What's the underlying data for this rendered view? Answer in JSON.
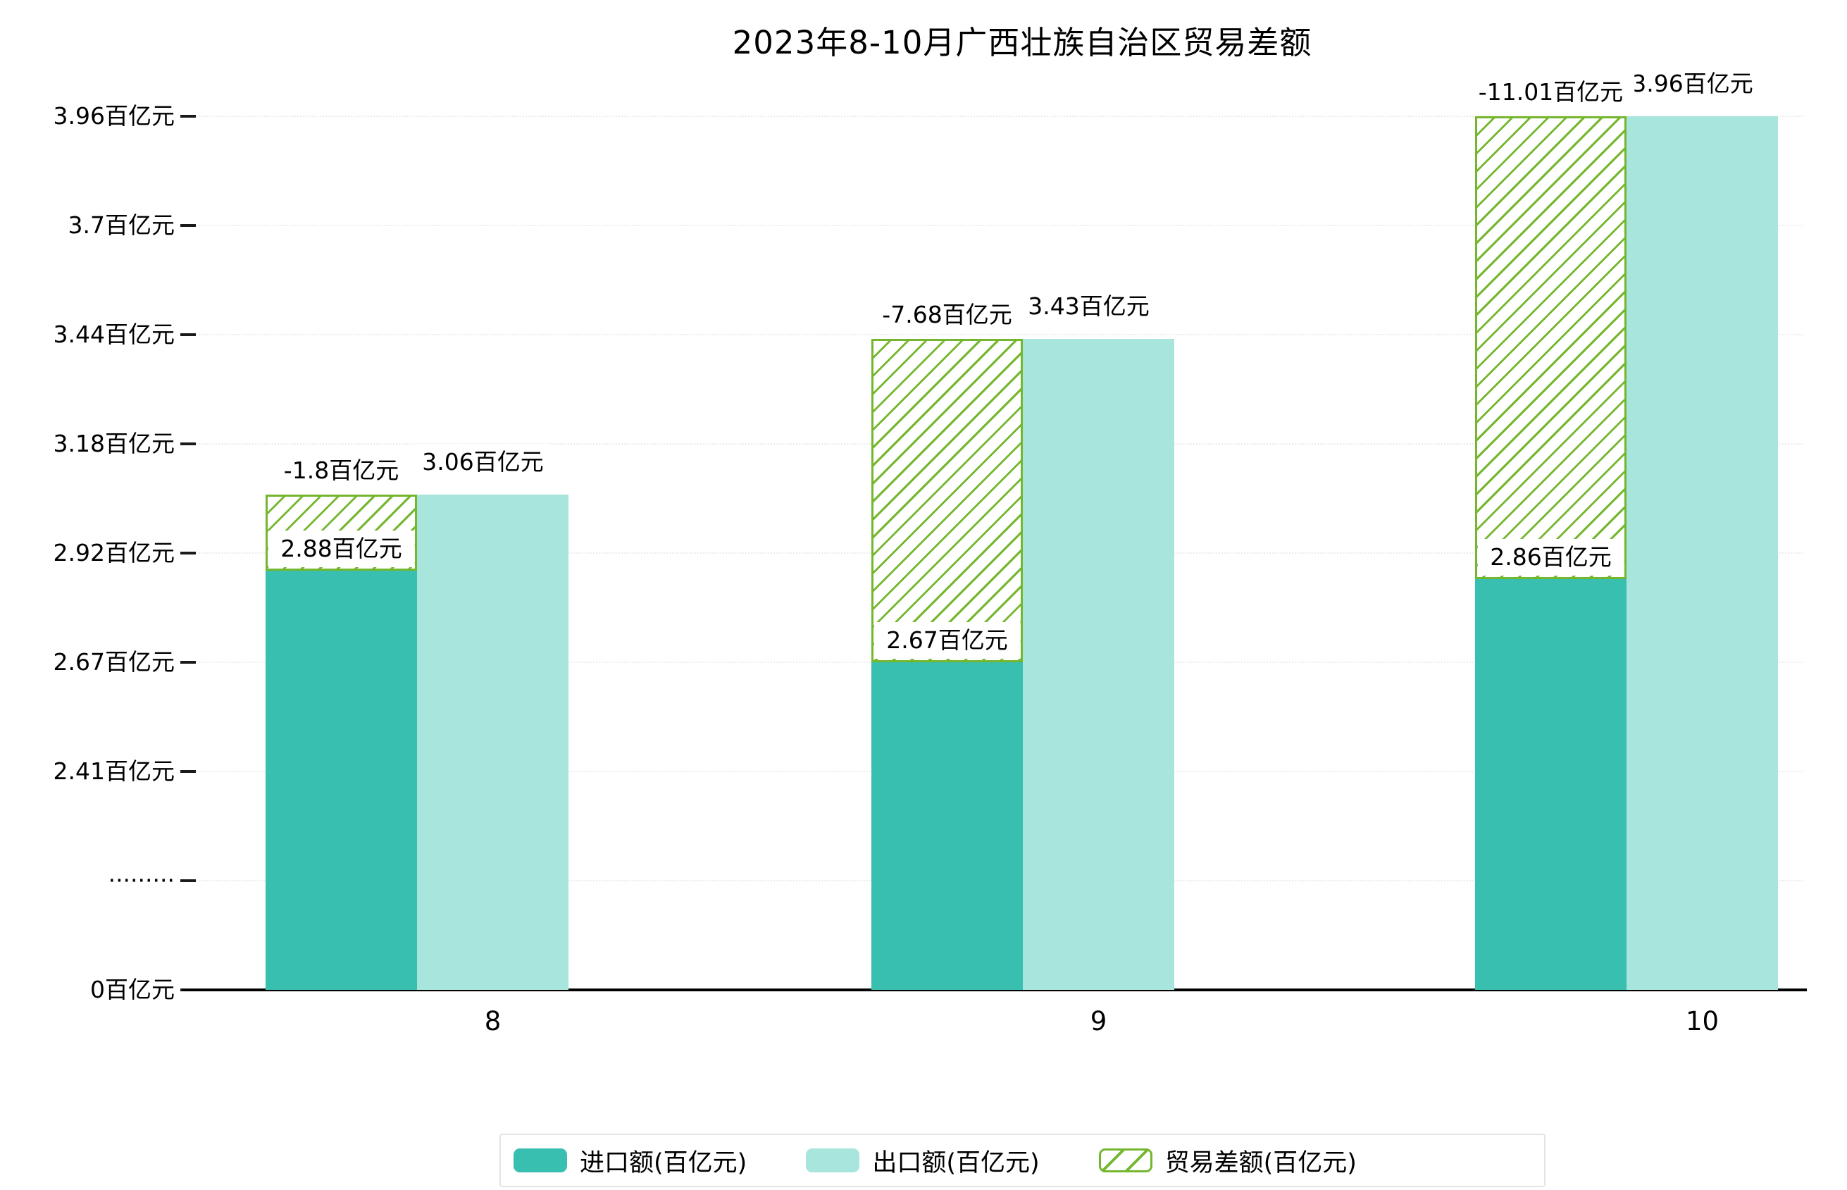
{
  "title": "2023年8-10月广西壮族自治区贸易差额",
  "colors": {
    "import_bar": "#38BFB0",
    "export_bar": "#A8E5DC",
    "diff_green": "#74B72E",
    "axis": "#000000",
    "grid": "#ECECEC",
    "label_bg": "#FFFFFF"
  },
  "y_axis": {
    "tick_labels_top_to_bottom": [
      "3.96百亿元",
      "3.7百亿元",
      "3.44百亿元",
      "3.18百亿元",
      "2.92百亿元",
      "2.67百亿元",
      "2.41百亿元",
      "·········",
      "0百亿元"
    ]
  },
  "x_axis": {
    "categories": [
      "8",
      "9",
      "10"
    ]
  },
  "legend": {
    "items": [
      {
        "label": "进口额(百亿元)",
        "swatch": "import"
      },
      {
        "label": "出口额(百亿元)",
        "swatch": "export"
      },
      {
        "label": "贸易差额(百亿元)",
        "swatch": "diff"
      }
    ]
  },
  "chart_data": {
    "type": "bar",
    "title": "2023年8-10月广西壮族自治区贸易差额",
    "categories": [
      "8",
      "9",
      "10"
    ],
    "series": [
      {
        "name": "进口额(百亿元)",
        "values": [
          2.88,
          2.67,
          2.86
        ],
        "value_labels": [
          "2.88百亿元",
          "2.67百亿元",
          "2.86百亿元"
        ]
      },
      {
        "name": "出口额(百亿元)",
        "values": [
          3.06,
          3.43,
          3.96
        ],
        "value_labels": [
          "3.06百亿元",
          "3.43百亿元",
          "3.96百亿元"
        ]
      },
      {
        "name": "贸易差额(百亿元)",
        "values": [
          -1.8,
          -7.68,
          -11.01
        ],
        "value_labels": [
          "-1.8百亿元",
          "-7.68百亿元",
          "-11.01百亿元"
        ]
      }
    ],
    "y_tick_values": [
      3.96,
      3.7,
      3.44,
      3.18,
      2.92,
      2.67,
      2.41
    ],
    "axis_break_between": [
      2.41,
      0
    ],
    "xlabel": "",
    "ylabel": "",
    "grid": "dotted-horizontal",
    "legend_position": "bottom"
  }
}
